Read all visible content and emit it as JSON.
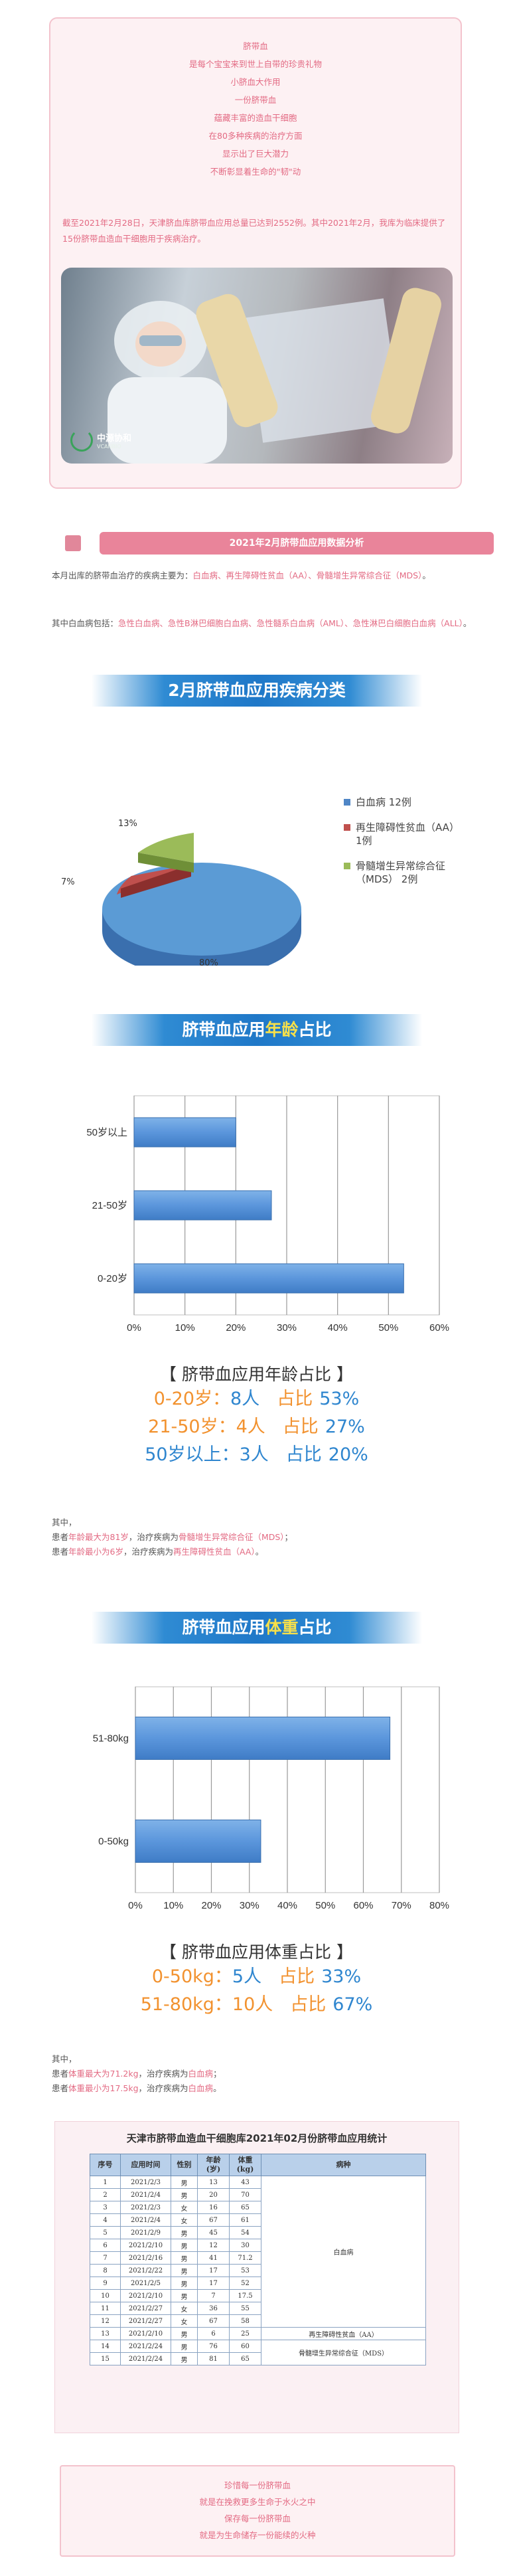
{
  "poem": [
    "脐带血",
    "是每个宝宝来到世上自带的珍贵礼物",
    "小脐血大作用",
    "一份脐带血",
    "蕴藏丰富的造血干细胞",
    "在80多种疾病的治疗方面",
    "显示出了巨大潜力",
    "不断彰显着生命的\"韧\"动"
  ],
  "intro": "截至2021年2月28日，天津脐血库脐带血应用总量已达到2552例。其中2021年2月，我库为临床提供了15份脐带血造血干细胞用于疾病治疗。",
  "logo": {
    "name": "中源协和",
    "sub": "VCANBIO"
  },
  "section_title": "2021年2月脐带血应用数据分析",
  "disease_para": {
    "prefix": "本月出库的脐带血治疗的疾病主要为：",
    "items": "白血病、再生障碍性贫血（AA）、骨髓增生异常综合征（MDS）",
    "suffix": "。"
  },
  "leukemia_para": {
    "prefix": "其中白血病包括：",
    "items": "急性白血病、急性B淋巴细胞白血病、急性髓系白血病（AML）、急性淋巴白细胞白血病（ALL）",
    "suffix": "。"
  },
  "banner1": "2月脐带血应用疾病分类",
  "chart_data": [
    {
      "type": "pie",
      "title": "2月脐带血应用疾病分类",
      "slices": [
        {
          "name": "白血病",
          "value": 80,
          "count": "12例",
          "label": "80%",
          "color": "#5b9bd5"
        },
        {
          "name": "再生障碍性贫血（AA）",
          "value": 7,
          "count": "1例",
          "label": "7%",
          "color": "#c0504d"
        },
        {
          "name": "骨髓增生异常综合征（MDS）",
          "value": 13,
          "count": "2例",
          "label": "13%",
          "color": "#9bbb59"
        }
      ]
    },
    {
      "type": "bar",
      "title": "脐带血应用年龄占比",
      "categories": [
        "50岁以上",
        "21-50岁",
        "0-20岁"
      ],
      "values": [
        20,
        27,
        53
      ],
      "xlim": [
        0,
        60
      ],
      "ticks": [
        "0%",
        "10%",
        "20%",
        "30%",
        "40%",
        "50%",
        "60%"
      ],
      "unit": "%"
    },
    {
      "type": "bar",
      "title": "脐带血应用体重占比",
      "categories": [
        "51-80kg",
        "0-50kg"
      ],
      "values": [
        67,
        33
      ],
      "xlim": [
        0,
        80
      ],
      "ticks": [
        "0%",
        "10%",
        "20%",
        "30%",
        "40%",
        "50%",
        "60%",
        "70%",
        "80%"
      ],
      "unit": "%"
    }
  ],
  "legend": [
    {
      "label": "白血病  12例",
      "color": "#4f86c6"
    },
    {
      "label": "再生障碍性贫血（AA）\n1例",
      "color": "#c0504d"
    },
    {
      "label": "骨髓增生异常综合征\n（MDS） 2例",
      "color": "#9bbb59"
    }
  ],
  "pie_labels": {
    "a": "80%",
    "b": "7%",
    "c": "13%"
  },
  "banner2": {
    "pre": "脐带血应用",
    "hl": "年龄",
    "post": "占比"
  },
  "age_stats": {
    "title": "【 脐带血应用年龄占比 】",
    "rows": [
      {
        "label": "0-20岁：",
        "n": "8人",
        "share": "占比",
        "pct": "53%"
      },
      {
        "label": "21-50岁：",
        "n": "4人",
        "share": "占比",
        "pct": "27%"
      },
      {
        "label": "50岁以上：",
        "n": "3人",
        "share": "占比",
        "pct": "20%"
      }
    ]
  },
  "age_note": {
    "l1": "其中，",
    "l2a": "患者",
    "l2b": "年龄最大为81岁",
    "l2c": "，治疗疾病为",
    "l2d": "骨髓增生异常综合征（MDS）",
    "l2e": "；",
    "l3a": "患者",
    "l3b": "年龄最小为6岁",
    "l3c": "，治疗疾病为",
    "l3d": "再生障碍性贫血（AA）",
    "l3e": "。"
  },
  "banner3": {
    "pre": "脐带血应用",
    "hl": "体重",
    "post": "占比"
  },
  "weight_stats": {
    "title": "【 脐带血应用体重占比 】",
    "rows": [
      {
        "label": "0-50kg：",
        "n": "5人",
        "share": "占比",
        "pct": "33%"
      },
      {
        "label": "51-80kg：",
        "n": "10人",
        "share": "占比",
        "pct": "67%"
      }
    ]
  },
  "weight_note": {
    "l1": "其中，",
    "l2a": "患者",
    "l2b": "体重最大为71.2kg",
    "l2c": "，治疗疾病为",
    "l2d": "白血病",
    "l2e": "；",
    "l3a": "患者",
    "l3b": "体重最小为17.5kg",
    "l3c": "，治疗疾病为",
    "l3d": "白血病",
    "l3e": "。"
  },
  "table": {
    "title": "天津市脐带血造血干细胞库2021年02月份脐带血应用统计",
    "headers": [
      "序号",
      "应用时间",
      "性别",
      "年龄\n(岁)",
      "体重\n(kg)",
      "病种"
    ],
    "rows": [
      [
        "1",
        "2021/2/3",
        "男",
        "13",
        "43"
      ],
      [
        "2",
        "2021/2/4",
        "男",
        "20",
        "70"
      ],
      [
        "3",
        "2021/2/3",
        "女",
        "16",
        "65"
      ],
      [
        "4",
        "2021/2/4",
        "女",
        "67",
        "61"
      ],
      [
        "5",
        "2021/2/9",
        "男",
        "45",
        "54"
      ],
      [
        "6",
        "2021/2/10",
        "男",
        "12",
        "30"
      ],
      [
        "7",
        "2021/2/16",
        "男",
        "41",
        "71.2"
      ],
      [
        "8",
        "2021/2/22",
        "男",
        "17",
        "53"
      ],
      [
        "9",
        "2021/2/5",
        "男",
        "17",
        "52"
      ],
      [
        "10",
        "2021/2/10",
        "男",
        "7",
        "17.5"
      ],
      [
        "11",
        "2021/2/27",
        "女",
        "36",
        "55"
      ],
      [
        "12",
        "2021/2/27",
        "女",
        "67",
        "58"
      ],
      [
        "13",
        "2021/2/10",
        "男",
        "6",
        "25"
      ],
      [
        "14",
        "2021/2/24",
        "男",
        "76",
        "60"
      ],
      [
        "15",
        "2021/2/24",
        "男",
        "81",
        "65"
      ]
    ],
    "disease_leukemia": "白血病",
    "disease_aa": "再生障碍性贫血（AA）",
    "disease_mds": "骨髓增生异常综合征（MDS）"
  },
  "bottom_poem": [
    "珍惜每一份脐带血",
    "就是在挽救更多生命于水火之中",
    "保存每一份脐带血",
    "就是为生命储存一份能续的火种"
  ]
}
